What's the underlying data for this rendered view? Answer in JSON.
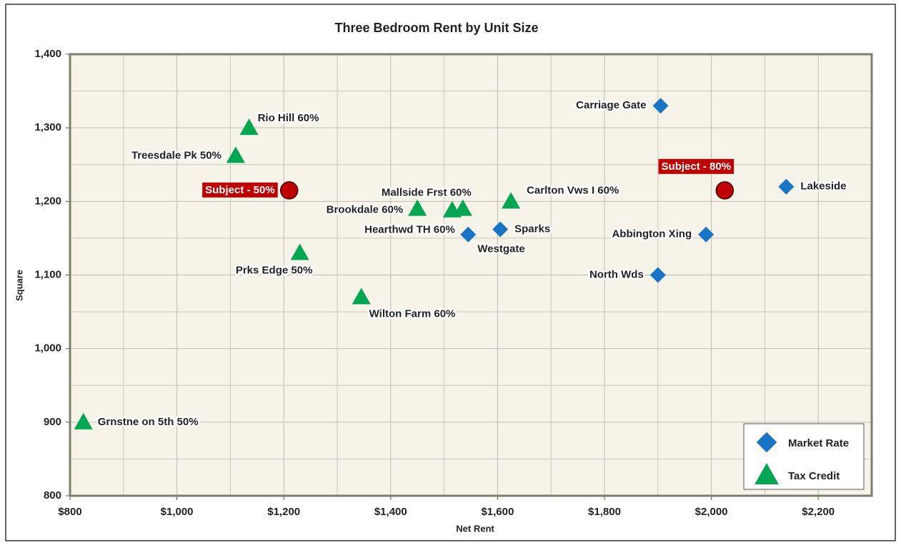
{
  "chart_data": {
    "type": "scatter",
    "title": "Three Bedroom Rent by Unit Size",
    "xlabel": "Net Rent",
    "ylabel": "Square",
    "xlim": [
      800,
      2300
    ],
    "ylim": [
      800,
      1400
    ],
    "xticks": [
      {
        "value": 800,
        "label": "$800"
      },
      {
        "value": 1000,
        "label": "$1,000"
      },
      {
        "value": 1200,
        "label": "$1,200"
      },
      {
        "value": 1400,
        "label": "$1,400"
      },
      {
        "value": 1600,
        "label": "$1,600"
      },
      {
        "value": 1800,
        "label": "$1,800"
      },
      {
        "value": 2000,
        "label": "$2,000"
      },
      {
        "value": 2200,
        "label": "$2,200"
      }
    ],
    "xminorticks": [
      900,
      1100,
      1300,
      1500,
      1700,
      1900,
      2100
    ],
    "yticks": [
      800,
      900,
      {
        "value": 1000,
        "label": "1,000"
      },
      {
        "value": 1100,
        "label": "1,100"
      },
      {
        "value": 1200,
        "label": "1,200"
      },
      {
        "value": 1300,
        "label": "1,300"
      },
      {
        "value": 1400,
        "label": "1,400"
      }
    ],
    "yminorticks": [
      850,
      950,
      1050,
      1150,
      1250,
      1350
    ],
    "grid": true,
    "legend": "lower right",
    "series": [
      {
        "name": "Market Rate",
        "color": "#1874c4",
        "marker": "diamond",
        "x": [
          1905,
          2140,
          1990,
          1900,
          1605,
          1545
        ],
        "y": [
          1330,
          1220,
          1155,
          1100,
          1162,
          1155
        ],
        "labels": [
          "Carriage Gate",
          "Lakeside",
          "Abbington Xing",
          "North Wds",
          "Sparks",
          "Westgate"
        ]
      },
      {
        "name": "Tax Credit",
        "color": "#00a651",
        "marker": "triangle",
        "x": [
          1135,
          1110,
          1450,
          1535,
          1515,
          1625,
          1230,
          1345,
          825
        ],
        "y": [
          1300,
          1262,
          1190,
          1190,
          1188,
          1200,
          1130,
          1070,
          900
        ],
        "labels": [
          "Rio Hill 60%",
          "Treesdale Pk 50%",
          "Brookdale 60%",
          "Mallside Frst 60%",
          "Hearthwd TH 60%",
          "Carlton Vws I 60%",
          "Prks Edge 50%",
          "Wilton Farm 60%",
          "Grnstne on 5th 50%"
        ]
      },
      {
        "color": "#c00000",
        "marker": "circle",
        "x": [
          1210,
          2025
        ],
        "y": [
          1215,
          1215
        ],
        "labels": [
          "Subject - 50%",
          "Subject - 80%"
        ]
      }
    ]
  }
}
